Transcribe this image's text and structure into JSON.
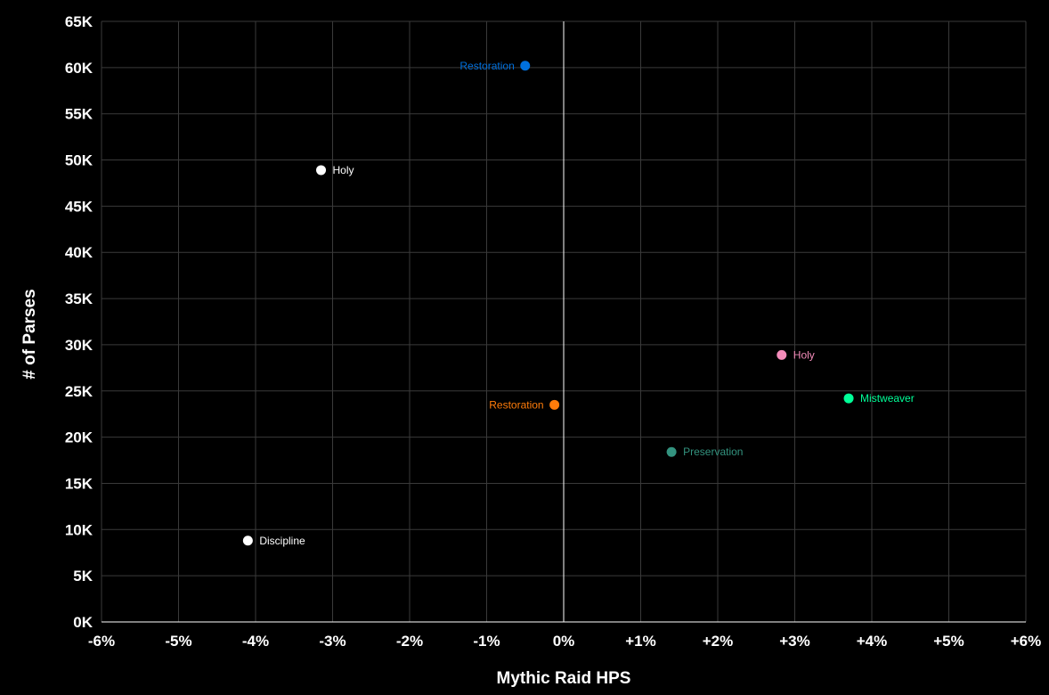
{
  "chart_data": {
    "type": "scatter",
    "title": "",
    "xlabel": "Mythic Raid HPS",
    "ylabel": "# of Parses",
    "xlim": [
      -6,
      6
    ],
    "ylim": [
      0,
      65000
    ],
    "x_ticks": [
      {
        "value": -6,
        "label": "-6%"
      },
      {
        "value": -5,
        "label": "-5%"
      },
      {
        "value": -4,
        "label": "-4%"
      },
      {
        "value": -3,
        "label": "-3%"
      },
      {
        "value": -2,
        "label": "-2%"
      },
      {
        "value": -1,
        "label": "-1%"
      },
      {
        "value": 0,
        "label": "0%"
      },
      {
        "value": 1,
        "label": "+1%"
      },
      {
        "value": 2,
        "label": "+2%"
      },
      {
        "value": 3,
        "label": "+3%"
      },
      {
        "value": 4,
        "label": "+4%"
      },
      {
        "value": 5,
        "label": "+5%"
      },
      {
        "value": 6,
        "label": "+6%"
      }
    ],
    "y_ticks": [
      {
        "value": 0,
        "label": "0K"
      },
      {
        "value": 5000,
        "label": "5K"
      },
      {
        "value": 10000,
        "label": "10K"
      },
      {
        "value": 15000,
        "label": "15K"
      },
      {
        "value": 20000,
        "label": "20K"
      },
      {
        "value": 25000,
        "label": "25K"
      },
      {
        "value": 30000,
        "label": "30K"
      },
      {
        "value": 35000,
        "label": "35K"
      },
      {
        "value": 40000,
        "label": "40K"
      },
      {
        "value": 45000,
        "label": "45K"
      },
      {
        "value": 50000,
        "label": "50K"
      },
      {
        "value": 55000,
        "label": "55K"
      },
      {
        "value": 60000,
        "label": "60K"
      },
      {
        "value": 65000,
        "label": "65K"
      }
    ],
    "grid": true,
    "zero_line": true,
    "points": [
      {
        "label": "Restoration",
        "x": -0.5,
        "y": 60200,
        "color": "#0070DD",
        "label_side": "left"
      },
      {
        "label": "Holy",
        "x": -3.15,
        "y": 48900,
        "color": "#FFFFFF",
        "label_side": "right"
      },
      {
        "label": "Holy",
        "x": 2.83,
        "y": 28900,
        "color": "#F48CBA",
        "label_side": "right"
      },
      {
        "label": "Mistweaver",
        "x": 3.7,
        "y": 24200,
        "color": "#00FF98",
        "label_side": "right"
      },
      {
        "label": "Restoration",
        "x": -0.12,
        "y": 23500,
        "color": "#FF7C0A",
        "label_side": "left"
      },
      {
        "label": "Preservation",
        "x": 1.4,
        "y": 18400,
        "color": "#33937F",
        "label_side": "right"
      },
      {
        "label": "Discipline",
        "x": -4.1,
        "y": 8800,
        "color": "#FFFFFF",
        "label_side": "right"
      }
    ]
  },
  "colors": {
    "background": "#000000",
    "grid": "#3a3a3a",
    "axis": "#ffffff",
    "text": "#ffffff"
  }
}
